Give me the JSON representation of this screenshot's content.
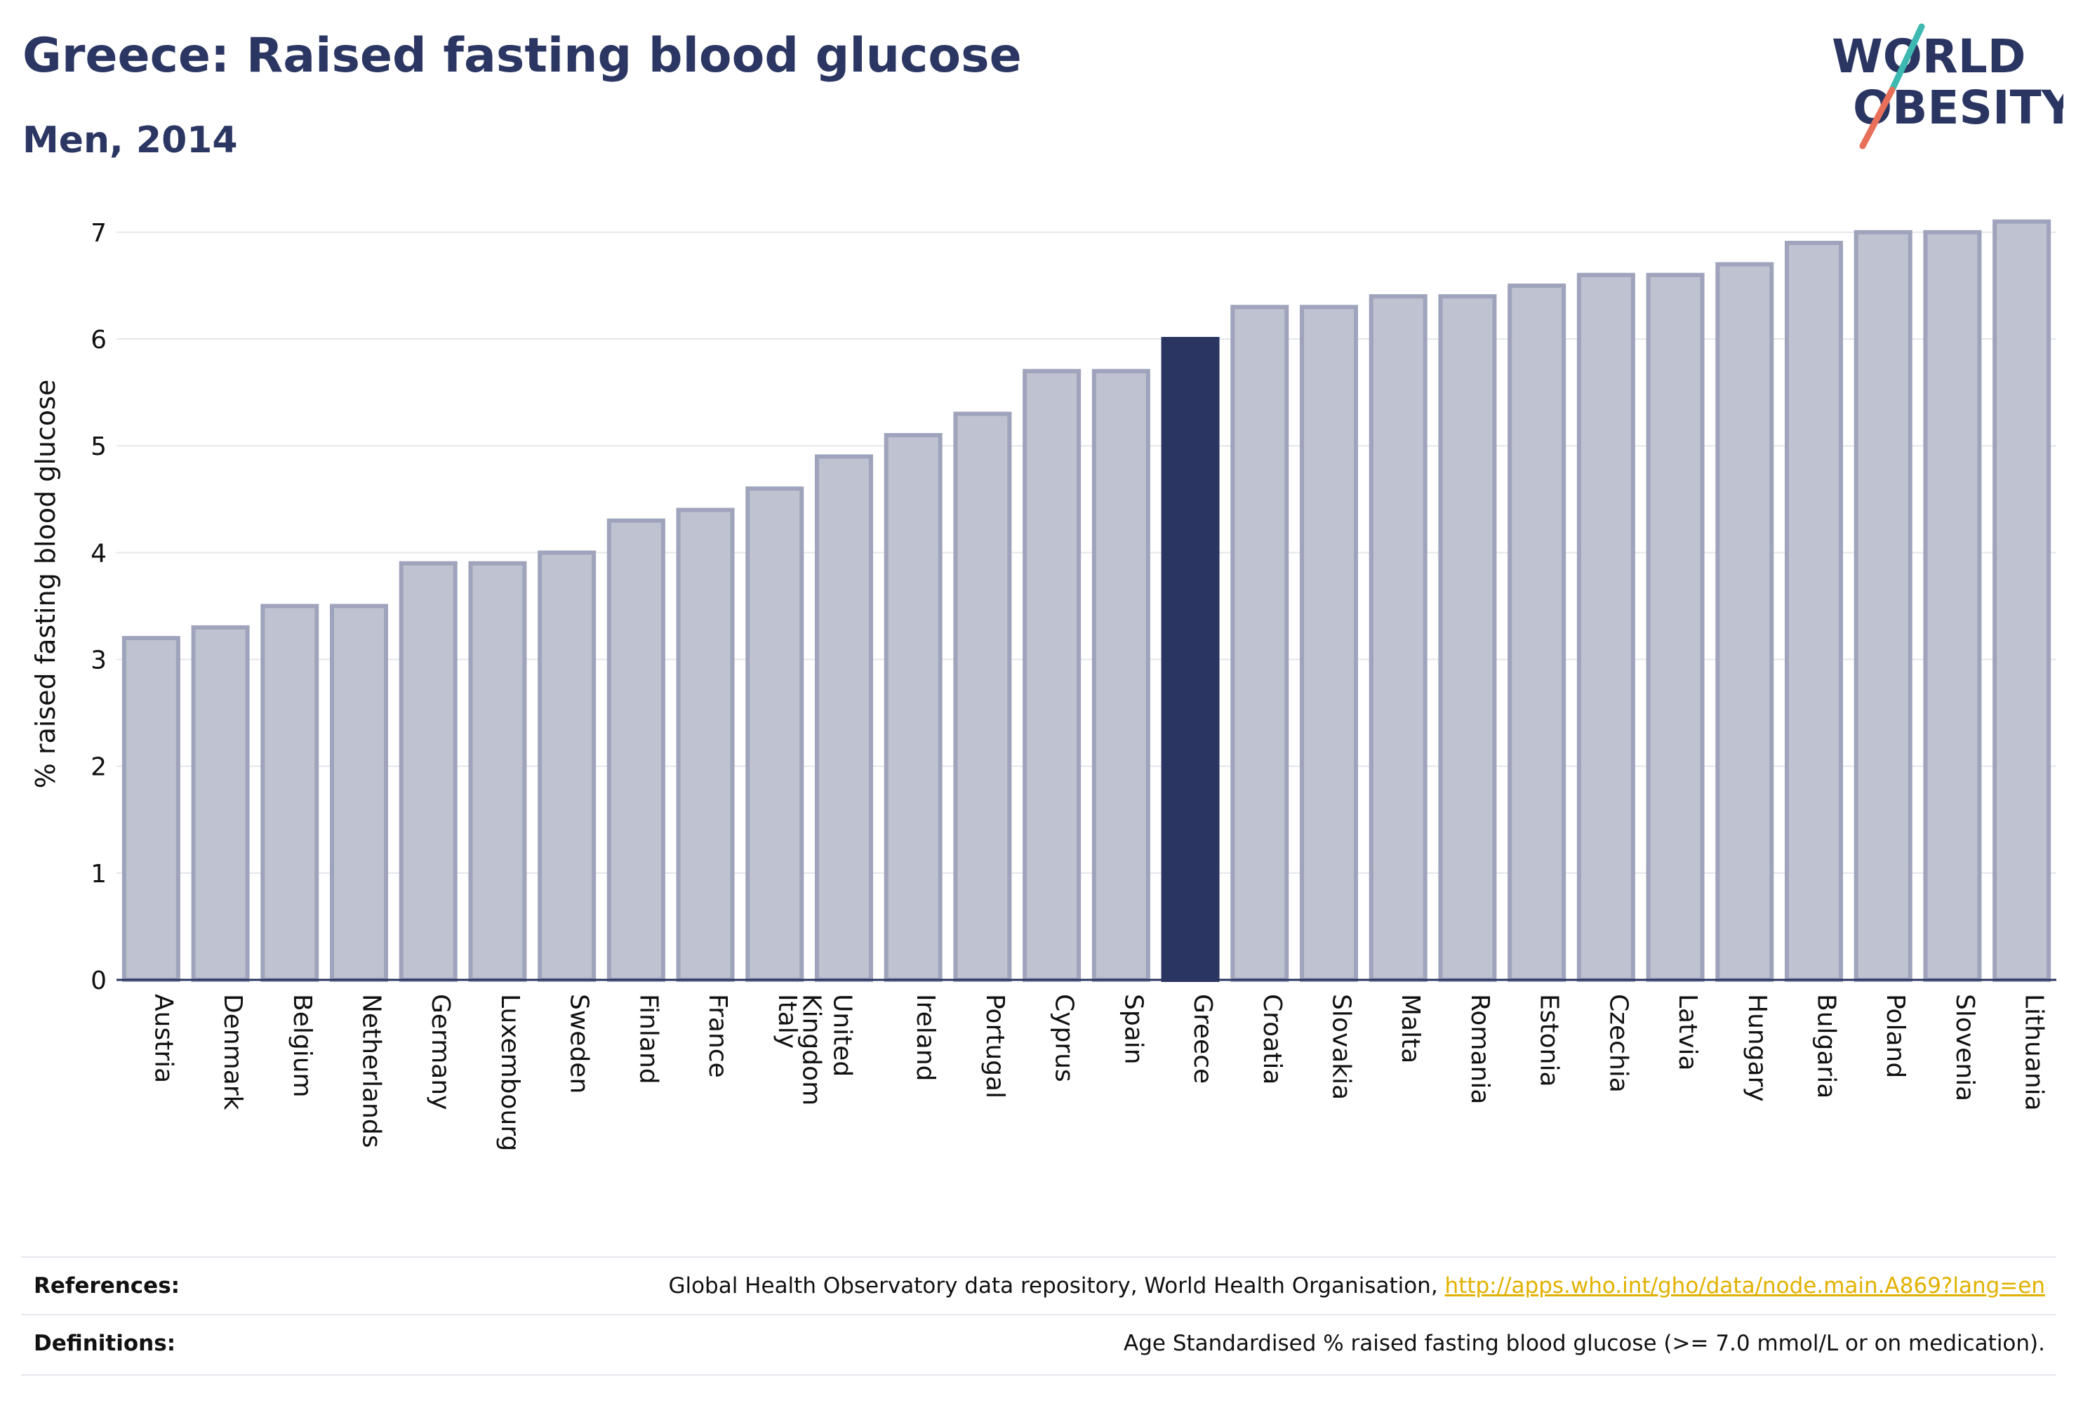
{
  "header": {
    "title": "Greece: Raised fasting blood glucose",
    "subtitle": "Men, 2014"
  },
  "logo": {
    "line1": "WORLD",
    "line2": "OBESITY"
  },
  "footer": {
    "references_label": "References:",
    "references_text": "Global Health Observatory data repository, World Health Organisation, ",
    "references_link": "http://apps.who.int/gho/data/node.main.A869?lang=en",
    "definitions_label": "Definitions:",
    "definitions_text": "Age Standardised % raised fasting blood glucose (>= 7.0 mmol/L or on medication)."
  },
  "colors": {
    "bar_default": "#bfc2d0",
    "bar_border": "#9fa3bb",
    "bar_highlight": "#2a3561",
    "link": "#e2b100",
    "logo_teal": "#3db9b2",
    "logo_coral": "#e8705a"
  },
  "chart_data": {
    "type": "bar",
    "title": "Greece: Raised fasting blood glucose",
    "subtitle": "Men, 2014",
    "ylabel": "% raised fasting blood glucose",
    "xlabel": "",
    "ylim": [
      0,
      7.4
    ],
    "yticks": [
      0,
      1,
      2,
      3,
      4,
      5,
      6,
      7
    ],
    "grid": true,
    "highlight": "Greece",
    "categories": [
      "Austria",
      "Denmark",
      "Belgium",
      "Netherlands",
      "Germany",
      "Luxembourg",
      "Sweden",
      "Finland",
      "France",
      "Italy",
      "United Kingdom",
      "Ireland",
      "Portugal",
      "Cyprus",
      "Spain",
      "Greece",
      "Croatia",
      "Slovakia",
      "Malta",
      "Romania",
      "Estonia",
      "Czechia",
      "Latvia",
      "Hungary",
      "Bulgaria",
      "Poland",
      "Slovenia",
      "Lithuania"
    ],
    "values": [
      3.2,
      3.3,
      3.5,
      3.5,
      3.9,
      3.9,
      4.0,
      4.3,
      4.4,
      4.6,
      4.9,
      5.1,
      5.3,
      5.7,
      5.7,
      6.0,
      6.3,
      6.3,
      6.4,
      6.4,
      6.5,
      6.6,
      6.6,
      6.7,
      6.9,
      7.0,
      7.0,
      7.1
    ]
  }
}
